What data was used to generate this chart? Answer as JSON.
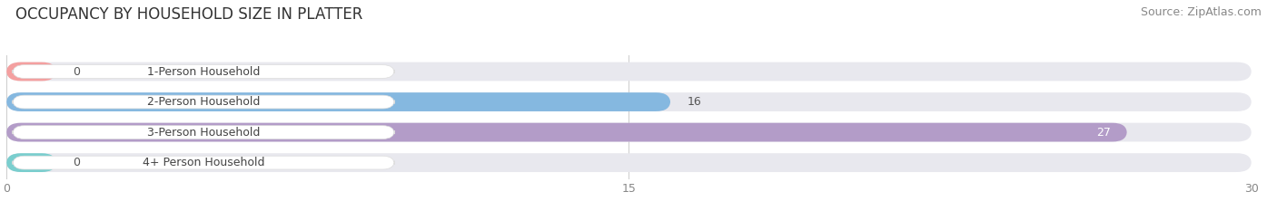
{
  "title": "OCCUPANCY BY HOUSEHOLD SIZE IN PLATTER",
  "source": "Source: ZipAtlas.com",
  "categories": [
    "1-Person Household",
    "2-Person Household",
    "3-Person Household",
    "4+ Person Household"
  ],
  "values": [
    0,
    16,
    27,
    0
  ],
  "bar_colors": [
    "#f4a0a0",
    "#85b8e0",
    "#b39cc8",
    "#7acece"
  ],
  "bar_bg_color": "#e8e8ee",
  "xlim_max": 30,
  "xticks": [
    0,
    15,
    30
  ],
  "title_fontsize": 12,
  "source_fontsize": 9,
  "tick_fontsize": 9,
  "bar_label_fontsize": 9,
  "category_fontsize": 9,
  "background_color": "#ffffff",
  "plot_bg_color": "#ffffff",
  "value_label_color_inside": "#ffffff",
  "value_label_color_outside": "#555555"
}
